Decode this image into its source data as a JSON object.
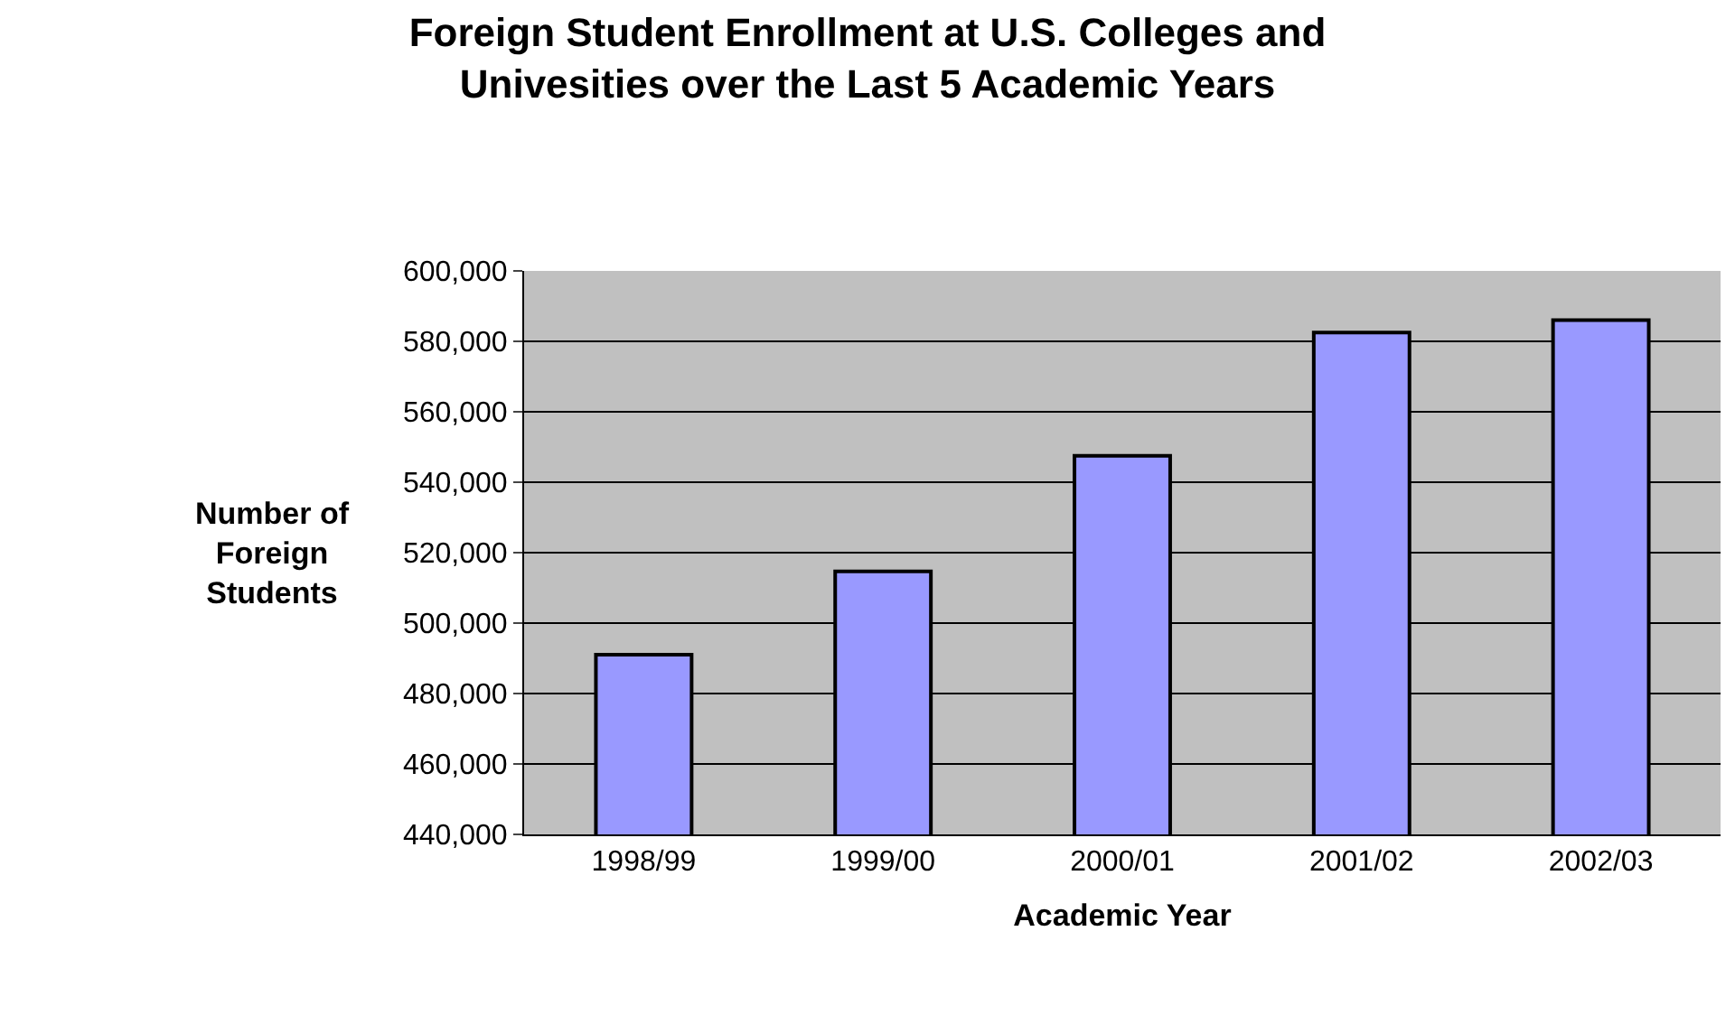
{
  "chart_data": {
    "type": "bar",
    "title": "Foreign Student Enrollment at U.S. Colleges and Univesities over the Last 5 Academic Years",
    "xlabel": "Academic Year",
    "ylabel": "Number of Foreign Students",
    "categories": [
      "1998/99",
      "1999/00",
      "2000/01",
      "2001/02",
      "2002/03"
    ],
    "values": [
      491000,
      514700,
      547500,
      582500,
      586000
    ],
    "color": "#9999ff",
    "ylim": [
      440000,
      600000
    ],
    "yticks": [
      {
        "value": 440000,
        "label": "440,000"
      },
      {
        "value": 460000,
        "label": "460,000"
      },
      {
        "value": 480000,
        "label": "480,000"
      },
      {
        "value": 500000,
        "label": "500,000"
      },
      {
        "value": 520000,
        "label": "520,000"
      },
      {
        "value": 540000,
        "label": "540,000"
      },
      {
        "value": 560000,
        "label": "560,000"
      },
      {
        "value": 580000,
        "label": "580,000"
      },
      {
        "value": 600000,
        "label": "600,000"
      }
    ],
    "grid": "y",
    "legend": false
  }
}
